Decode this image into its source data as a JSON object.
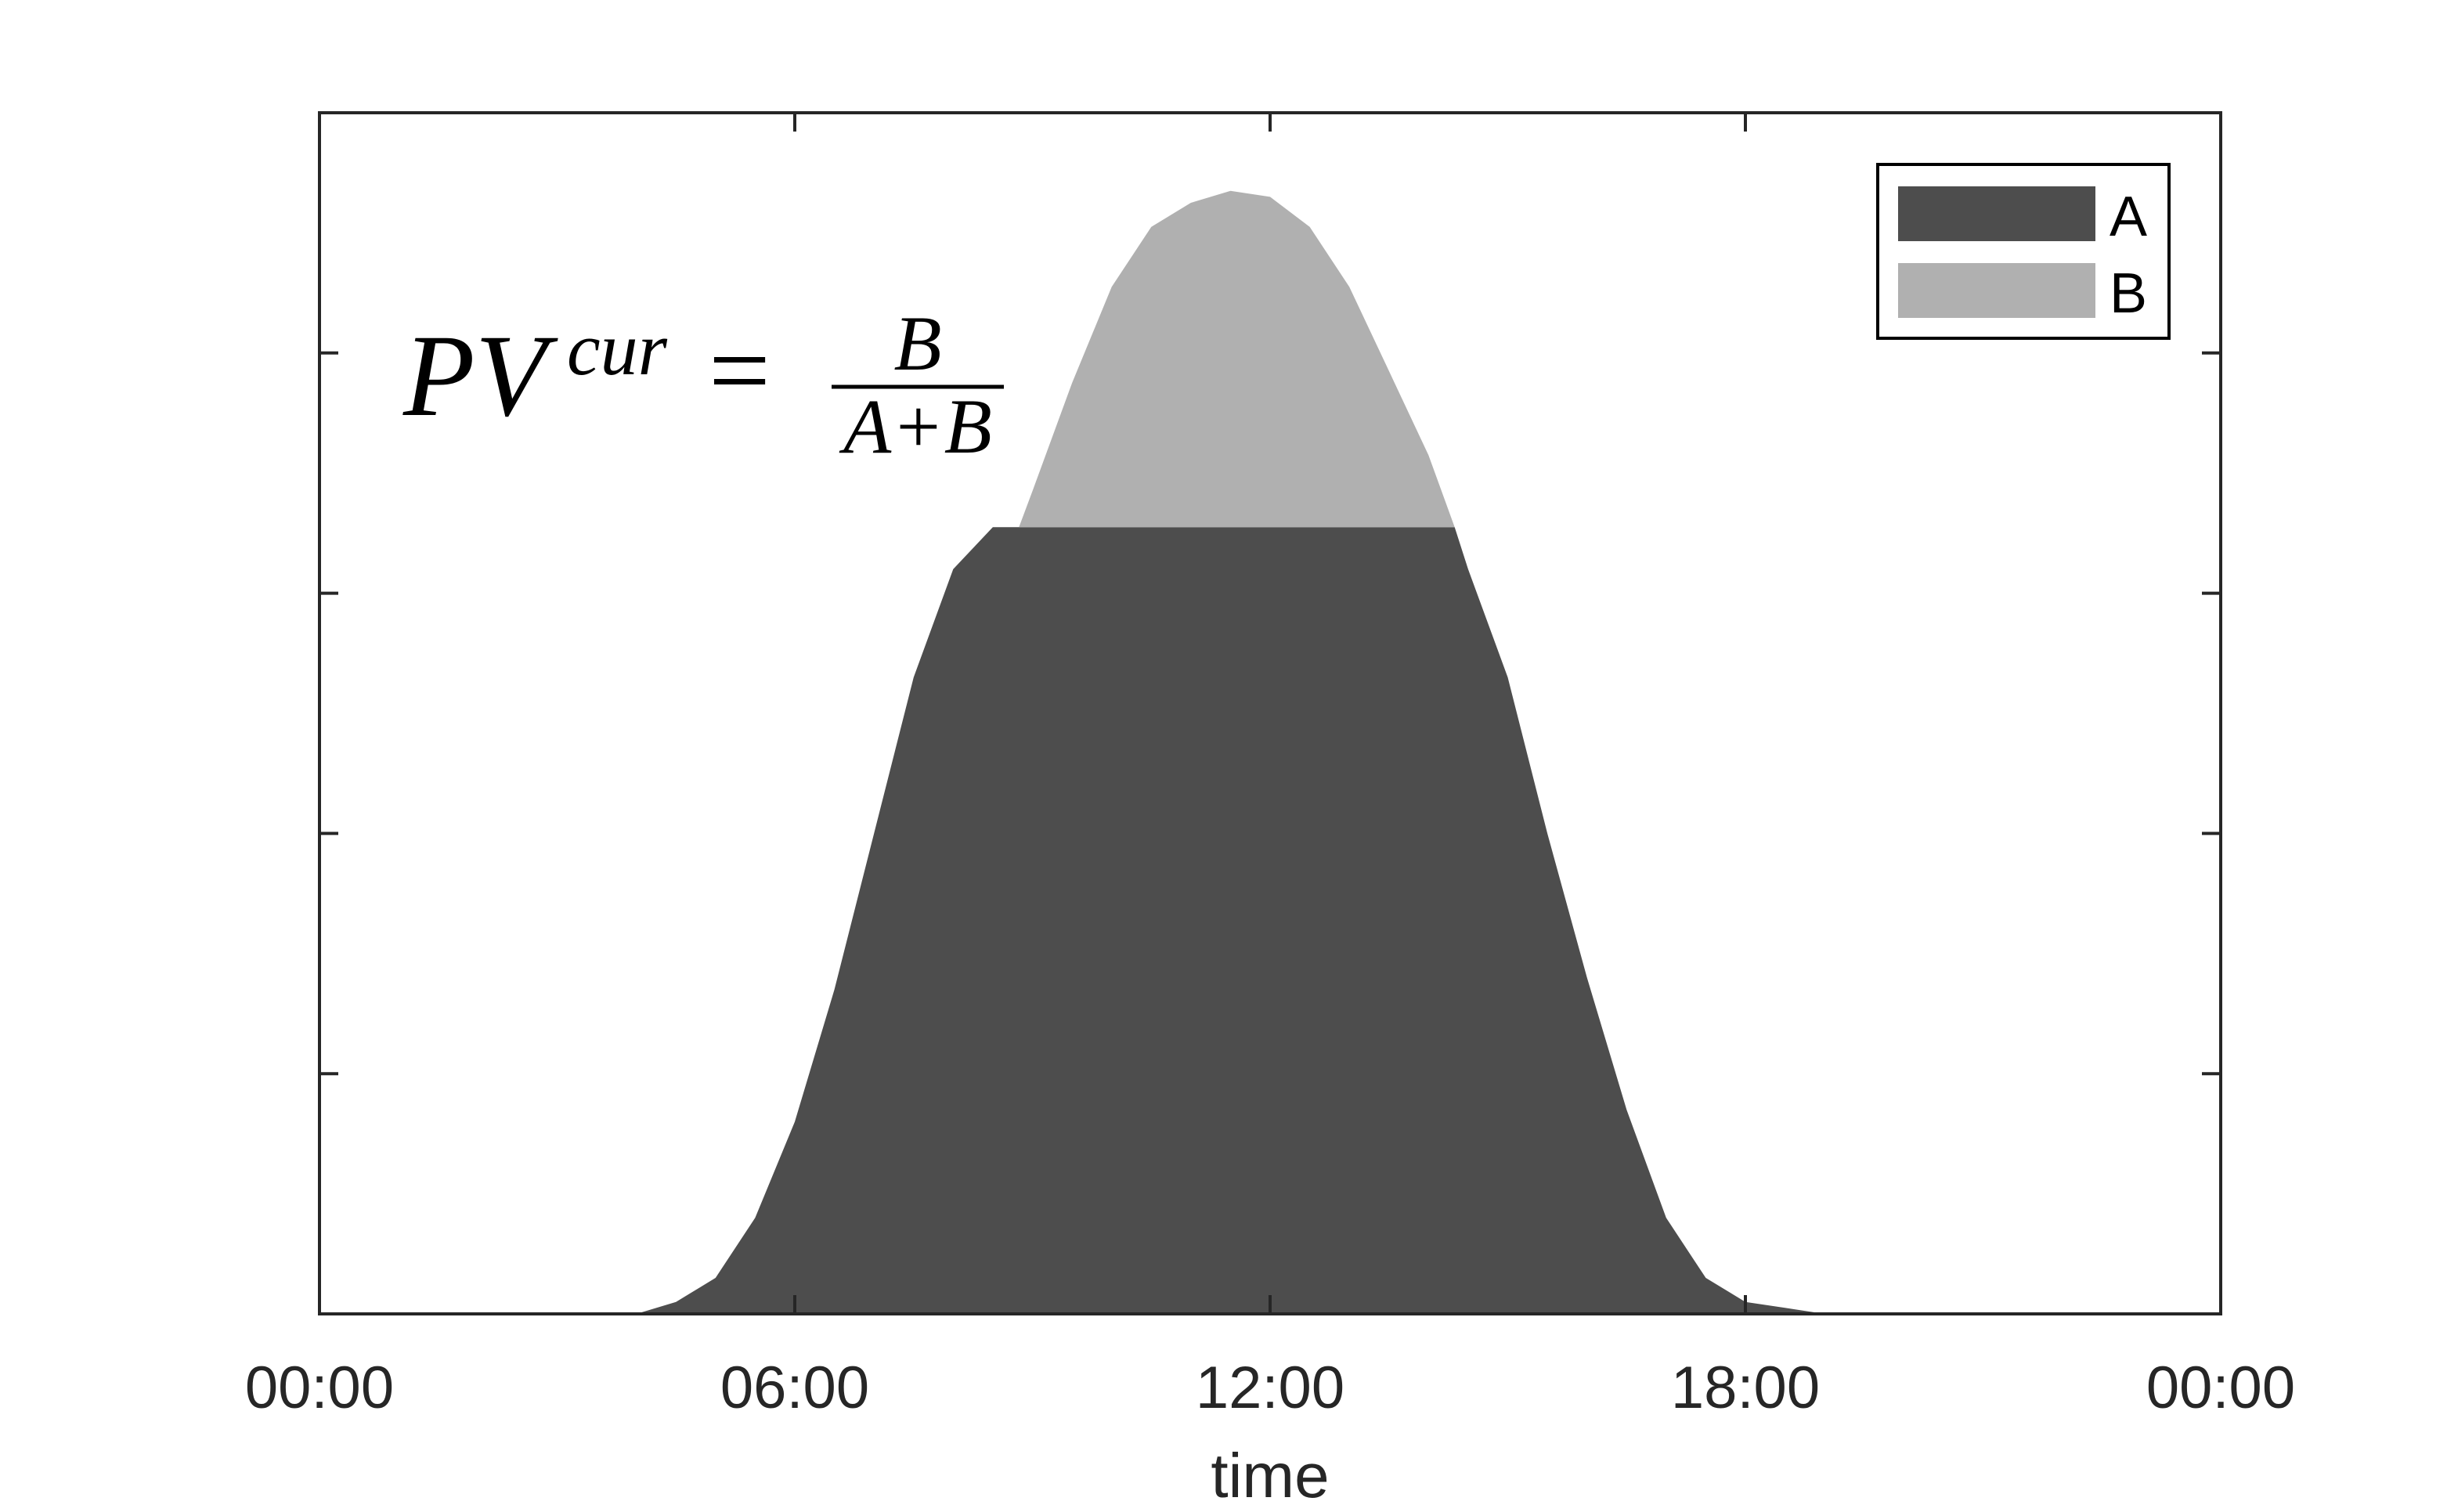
{
  "chart_data": {
    "type": "area",
    "xlabel": "time",
    "ylabel": "",
    "x_tick_labels": [
      "00:00",
      "06:00",
      "12:00",
      "18:00",
      "00:00"
    ],
    "x_ticks_hours": [
      0,
      6,
      12,
      18,
      24
    ],
    "xlim_hours": [
      0,
      24
    ],
    "ylim": [
      0,
      1
    ],
    "y_ticks": [
      0,
      0.2,
      0.4,
      0.6,
      0.8,
      1.0
    ],
    "y_tick_labels_visible": false,
    "grid": false,
    "legend": {
      "position": "top-right",
      "entries": [
        {
          "label": "A",
          "color": "#4d4d4d"
        },
        {
          "label": "B",
          "color": "#b0b0b0"
        }
      ]
    },
    "annotation": {
      "lhs": "PV",
      "superscript": "cur",
      "equals": "=",
      "numerator": "B",
      "denominator": "A+B"
    },
    "cap_level": 0.655,
    "x_hours": [
      0,
      4,
      4.5,
      5,
      5.5,
      6,
      6.5,
      7,
      7.5,
      8,
      8.5,
      8.83,
      9,
      9.5,
      10,
      10.5,
      11,
      11.5,
      12,
      12.5,
      13,
      13.5,
      14,
      14.5,
      14.33,
      15,
      15.5,
      16,
      16.5,
      17,
      17.5,
      18,
      18.5,
      19,
      24
    ],
    "series": [
      {
        "name": "A",
        "color": "#4d4d4d",
        "x": [
          0,
          4,
          4.5,
          5,
          5.5,
          6,
          6.5,
          7,
          7.5,
          8,
          8.5,
          8.83,
          9,
          9.5,
          10,
          10.5,
          11,
          11.5,
          12,
          12.5,
          13,
          13.5,
          14,
          14.33,
          14.5,
          15,
          15.5,
          16,
          16.5,
          17,
          17.5,
          18,
          18.5,
          19,
          24
        ],
        "values": [
          0,
          0,
          0.01,
          0.03,
          0.08,
          0.16,
          0.27,
          0.4,
          0.53,
          0.62,
          0.655,
          0.655,
          0.655,
          0.655,
          0.655,
          0.655,
          0.655,
          0.655,
          0.655,
          0.655,
          0.655,
          0.655,
          0.655,
          0.655,
          0.62,
          0.53,
          0.4,
          0.28,
          0.17,
          0.08,
          0.03,
          0.01,
          0.005,
          0,
          0
        ]
      },
      {
        "name": "B",
        "color": "#b0b0b0",
        "x": [
          8.83,
          9,
          9.5,
          10,
          10.5,
          11,
          11.5,
          12,
          12.5,
          13,
          13.5,
          14,
          14.33
        ],
        "values": [
          0,
          0.03,
          0.12,
          0.2,
          0.25,
          0.27,
          0.28,
          0.275,
          0.25,
          0.2,
          0.13,
          0.06,
          0
        ]
      }
    ]
  }
}
